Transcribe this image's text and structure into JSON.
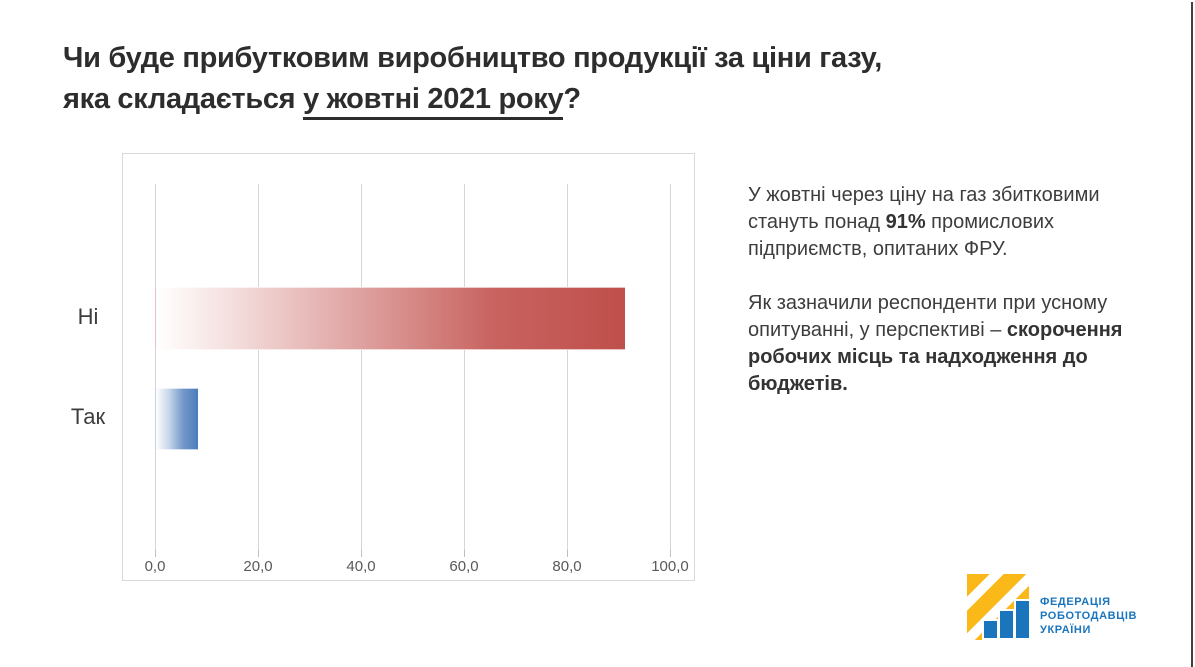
{
  "slide": {
    "title": {
      "line1": "Чи буде прибутковим виробництво продукції за ціни газу,",
      "line2_prefix": "яка складається ",
      "line2_underlined": "у жовтні 2021 року",
      "line2_suffix": "?"
    },
    "commentary": {
      "p1_before": "У жовтні через ціну на газ збитковими стануть понад ",
      "p1_bold": "91%",
      "p1_after": " промислових підприємств, опитаних ФРУ.",
      "p2_before": "Як зазначили респонденти при усному опитуванні, у перспективі – ",
      "p2_bold": "скорочення робочих місць та надходження до бюджетів."
    },
    "logo": {
      "line1": "ФЕДЕРАЦІЯ",
      "line2": "РОБОТОДАВЦІВ",
      "line3": "УКРАЇНИ",
      "brand_blue": "#1B75BC",
      "brand_yellow": "#FBB919"
    }
  },
  "chart_data": {
    "type": "bar",
    "orientation": "horizontal",
    "title": "Чи буде прибутковим виробництво продукції за ціни газу, яка складається у жовтні 2021 року?",
    "categories": [
      "Ні",
      "Так"
    ],
    "values": [
      91.5,
      8.5
    ],
    "xlabel": "",
    "ylabel": "",
    "xlim": [
      0,
      100
    ],
    "x_tick_values": [
      0,
      20,
      40,
      60,
      80,
      100
    ],
    "x_tick_labels": [
      "0,0",
      "20,0",
      "40,0",
      "60,0",
      "80,0",
      "100,0"
    ],
    "grid": true,
    "legend": false,
    "bar_colors": [
      "#BF4F4B",
      "#4A7EBB"
    ],
    "bar_style": "gradient white-to-color, left to right"
  }
}
